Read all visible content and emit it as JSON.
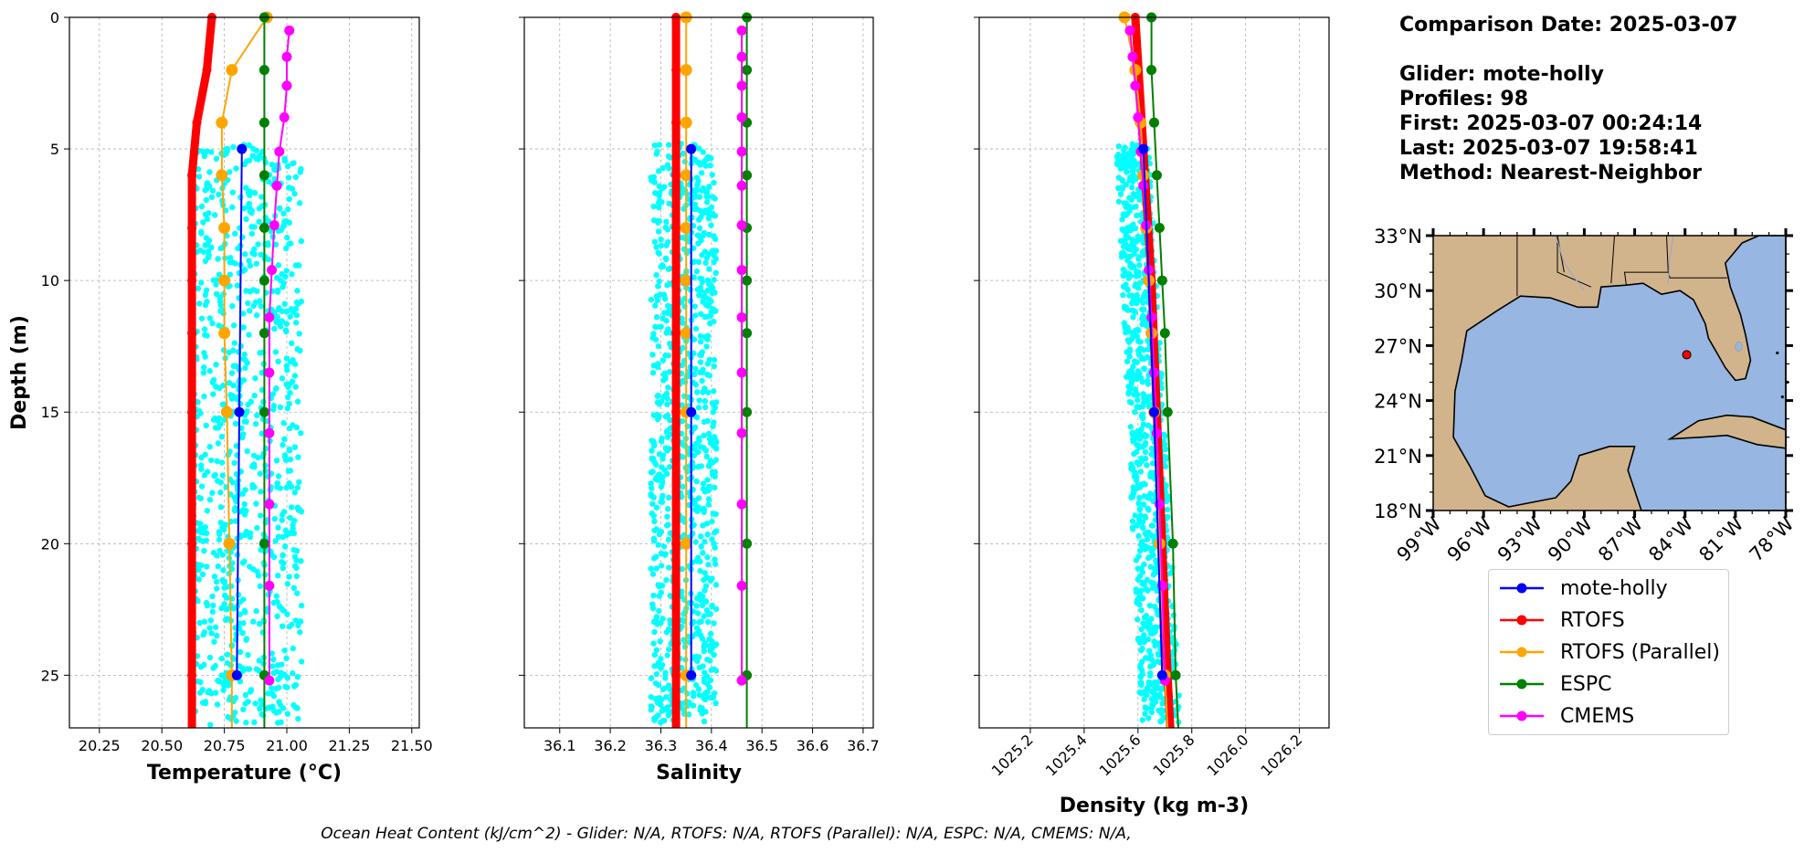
{
  "info": {
    "comparison_date": "Comparison Date: 2025-03-07",
    "glider": "Glider: mote-holly",
    "profiles": "Profiles: 98",
    "first": "First: 2025-03-07 00:24:14",
    "last": "Last: 2025-03-07 19:58:41",
    "method": "Method: Nearest-Neighbor"
  },
  "footer": "Ocean Heat Content (kJ/cm^2) - Glider: N/A,  RTOFS: N/A,  RTOFS (Parallel): N/A,  ESPC: N/A,  CMEMS: N/A,",
  "colors": {
    "glider_scatter": "#00ffff",
    "mote-holly": "#0000ff",
    "RTOFS": "#ff0000",
    "RTOFS (Parallel)": "#ffa500",
    "ESPC": "#008000",
    "CMEMS": "#ff00ff",
    "ocean": "#97b6e1",
    "land": "#d2b48c",
    "grid": "#b0b0b0"
  },
  "legend": [
    {
      "label": "mote-holly",
      "color": "#0000ff"
    },
    {
      "label": "RTOFS",
      "color": "#ff0000"
    },
    {
      "label": "RTOFS (Parallel)",
      "color": "#ffa500"
    },
    {
      "label": "ESPC",
      "color": "#008000"
    },
    {
      "label": "CMEMS",
      "color": "#ff00ff"
    }
  ],
  "chart_data": [
    {
      "type": "line",
      "xlabel": "Temperature (°C)",
      "ylabel": "Depth (m)",
      "xlim": [
        20.13,
        21.53
      ],
      "ylim": [
        27,
        0
      ],
      "y_inverted": true,
      "xticks": [
        "20.25",
        "20.50",
        "20.75",
        "21.00",
        "21.25",
        "21.50"
      ],
      "xtick_values": [
        20.25,
        20.5,
        20.75,
        21.0,
        21.25,
        21.5
      ],
      "yticks": [
        "0",
        "5",
        "10",
        "15",
        "20",
        "25"
      ],
      "ytick_values": [
        0,
        5,
        10,
        15,
        20,
        25
      ],
      "grid": true,
      "glider_scatter": {
        "x_range": [
          20.62,
          21.06
        ],
        "depth_range": [
          4.8,
          26.9
        ],
        "count": 900
      },
      "series": [
        {
          "name": "mote-holly",
          "depth": [
            5,
            15,
            25
          ],
          "values": [
            20.82,
            20.81,
            20.8
          ]
        },
        {
          "name": "RTOFS",
          "depth": [
            0,
            2,
            4,
            6,
            8,
            10,
            12,
            15,
            20,
            25,
            27
          ],
          "values": [
            20.7,
            20.68,
            20.64,
            20.62,
            20.62,
            20.62,
            20.62,
            20.62,
            20.62,
            20.62,
            20.62
          ]
        },
        {
          "name": "RTOFS (Parallel)",
          "depth": [
            0,
            2,
            4,
            6,
            8,
            10,
            12,
            15,
            20,
            25,
            27
          ],
          "values": [
            20.92,
            20.78,
            20.74,
            20.74,
            20.75,
            20.75,
            20.75,
            20.76,
            20.77,
            20.78,
            20.78
          ]
        },
        {
          "name": "ESPC",
          "depth": [
            0,
            2,
            4,
            6,
            8,
            10,
            12,
            15,
            20,
            25,
            27
          ],
          "values": [
            20.91,
            20.91,
            20.91,
            20.91,
            20.91,
            20.91,
            20.91,
            20.91,
            20.91,
            20.91,
            20.91
          ]
        },
        {
          "name": "CMEMS",
          "depth": [
            0.5,
            1.5,
            2.6,
            3.8,
            5.1,
            6.4,
            7.9,
            9.6,
            11.4,
            13.5,
            15.8,
            18.5,
            21.6,
            25.2
          ],
          "values": [
            21.01,
            21.0,
            21.0,
            20.99,
            20.97,
            20.96,
            20.95,
            20.94,
            20.93,
            20.93,
            20.93,
            20.93,
            20.93,
            20.93
          ]
        }
      ]
    },
    {
      "type": "line",
      "xlabel": "Salinity",
      "ylabel": "",
      "xlim": [
        36.03,
        36.72
      ],
      "ylim": [
        27,
        0
      ],
      "y_inverted": true,
      "xticks": [
        "36.1",
        "36.2",
        "36.3",
        "36.4",
        "36.5",
        "36.6",
        "36.7"
      ],
      "xtick_values": [
        36.1,
        36.2,
        36.3,
        36.4,
        36.5,
        36.6,
        36.7
      ],
      "yticks": [],
      "grid": true,
      "glider_scatter": {
        "x_range": [
          36.28,
          36.41
        ],
        "depth_range": [
          4.8,
          26.8
        ],
        "count": 900
      },
      "series": [
        {
          "name": "mote-holly",
          "depth": [
            5,
            15,
            25
          ],
          "values": [
            36.36,
            36.36,
            36.36
          ]
        },
        {
          "name": "RTOFS",
          "depth": [
            0,
            2,
            4,
            6,
            8,
            10,
            12,
            15,
            20,
            25,
            27
          ],
          "values": [
            36.33,
            36.33,
            36.33,
            36.33,
            36.33,
            36.33,
            36.33,
            36.33,
            36.33,
            36.33,
            36.33
          ]
        },
        {
          "name": "RTOFS (Parallel)",
          "depth": [
            0,
            2,
            4,
            6,
            8,
            10,
            12,
            15,
            20,
            25,
            27
          ],
          "values": [
            36.35,
            36.35,
            36.35,
            36.35,
            36.35,
            36.35,
            36.35,
            36.35,
            36.35,
            36.35,
            36.35
          ]
        },
        {
          "name": "ESPC",
          "depth": [
            0,
            2,
            4,
            6,
            8,
            10,
            12,
            15,
            20,
            25,
            27
          ],
          "values": [
            36.47,
            36.47,
            36.47,
            36.47,
            36.47,
            36.47,
            36.47,
            36.47,
            36.47,
            36.47,
            36.47
          ]
        },
        {
          "name": "CMEMS",
          "depth": [
            0.5,
            1.5,
            2.6,
            3.8,
            5.1,
            6.4,
            7.9,
            9.6,
            11.4,
            13.5,
            15.8,
            18.5,
            21.6,
            25.2
          ],
          "values": [
            36.46,
            36.46,
            36.46,
            36.46,
            36.46,
            36.46,
            36.46,
            36.46,
            36.46,
            36.46,
            36.46,
            36.46,
            36.46,
            36.46
          ]
        }
      ]
    },
    {
      "type": "line",
      "xlabel": "Density (kg m-3)",
      "ylabel": "",
      "xlim": [
        1025.01,
        1026.31
      ],
      "ylim": [
        27,
        0
      ],
      "y_inverted": true,
      "xticks": [
        "1025.2",
        "1025.4",
        "1025.6",
        "1025.8",
        "1026.0",
        "1026.2"
      ],
      "xtick_values": [
        1025.2,
        1025.4,
        1025.6,
        1025.8,
        1026.0,
        1026.2
      ],
      "xtick_rotation": 45,
      "yticks": [],
      "grid": true,
      "glider_scatter": {
        "x_range_top": [
          1025.52,
          1025.64
        ],
        "x_range_bottom": [
          1025.61,
          1025.76
        ],
        "depth_range": [
          4.8,
          26.8
        ],
        "count": 900
      },
      "series": [
        {
          "name": "mote-holly",
          "depth": [
            5,
            15,
            25
          ],
          "values": [
            1025.62,
            1025.66,
            1025.69
          ]
        },
        {
          "name": "RTOFS",
          "depth": [
            0,
            5,
            10,
            15,
            20,
            25,
            27
          ],
          "values": [
            1025.59,
            1025.62,
            1025.65,
            1025.67,
            1025.69,
            1025.71,
            1025.72
          ]
        },
        {
          "name": "RTOFS (Parallel)",
          "depth": [
            0,
            2,
            4,
            6,
            8,
            10,
            12,
            15,
            20,
            25,
            27
          ],
          "values": [
            1025.55,
            1025.59,
            1025.61,
            1025.62,
            1025.63,
            1025.64,
            1025.65,
            1025.66,
            1025.68,
            1025.7,
            1025.71
          ]
        },
        {
          "name": "ESPC",
          "depth": [
            0,
            2,
            4,
            6,
            8,
            10,
            12,
            15,
            20,
            25,
            27
          ],
          "values": [
            1025.65,
            1025.65,
            1025.66,
            1025.67,
            1025.68,
            1025.69,
            1025.7,
            1025.71,
            1025.73,
            1025.74,
            1025.75
          ]
        },
        {
          "name": "CMEMS",
          "depth": [
            0.5,
            1.5,
            2.6,
            3.8,
            5.1,
            6.4,
            7.9,
            9.6,
            11.4,
            13.5,
            15.8,
            18.5,
            21.6,
            25.2
          ],
          "values": [
            1025.57,
            1025.58,
            1025.59,
            1025.6,
            1025.61,
            1025.62,
            1025.63,
            1025.64,
            1025.65,
            1025.66,
            1025.67,
            1025.68,
            1025.69,
            1025.7
          ]
        }
      ]
    },
    {
      "type": "map",
      "lon_range": [
        -99,
        -78
      ],
      "lat_range": [
        18,
        33
      ],
      "lon_ticks": [
        "99°W",
        "96°W",
        "93°W",
        "90°W",
        "87°W",
        "84°W",
        "81°W",
        "78°W"
      ],
      "lon_tick_values": [
        -99,
        -96,
        -93,
        -90,
        -87,
        -84,
        -81,
        -78
      ],
      "lat_ticks": [
        "18°N",
        "21°N",
        "24°N",
        "27°N",
        "30°N",
        "33°N"
      ],
      "lat_tick_values": [
        18,
        21,
        24,
        27,
        30,
        33
      ],
      "glider_position": {
        "lon": -83.9,
        "lat": 26.5
      }
    }
  ]
}
